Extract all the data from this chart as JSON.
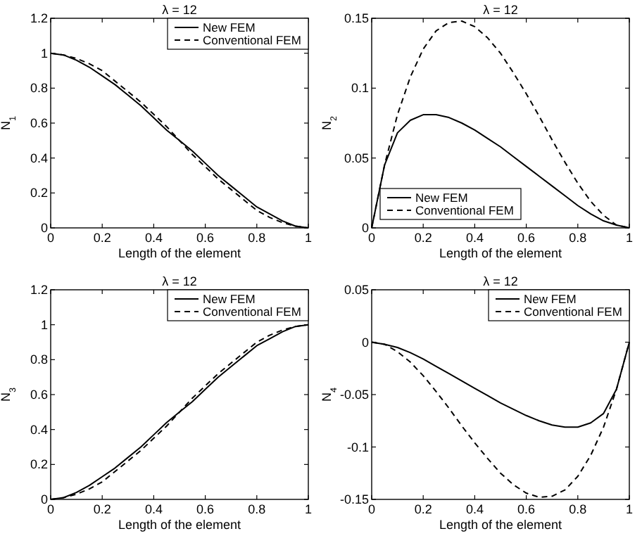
{
  "chart_data": [
    {
      "type": "line",
      "title": "λ = 12",
      "xlabel": "Length of the element",
      "ylabel": "N$_{1}$",
      "x": [
        0,
        0.05,
        0.1,
        0.15,
        0.2,
        0.25,
        0.3,
        0.35,
        0.4,
        0.45,
        0.5,
        0.55,
        0.6,
        0.65,
        0.7,
        0.75,
        0.8,
        0.85,
        0.9,
        0.95,
        1
      ],
      "xlim": [
        0,
        1
      ],
      "xticks": [
        0,
        0.2,
        0.4,
        0.6,
        0.8,
        1
      ],
      "ylim": [
        0,
        1.2
      ],
      "yticks": [
        0,
        0.2,
        0.4,
        0.6,
        0.8,
        1,
        1.2
      ],
      "legend": "top right",
      "grid": false,
      "series": [
        {
          "name": "New FEM",
          "color": "#000000",
          "line_style": "solid",
          "values": [
            1,
            0.99,
            0.96,
            0.92,
            0.87,
            0.82,
            0.76,
            0.7,
            0.63,
            0.56,
            0.5,
            0.44,
            0.37,
            0.3,
            0.24,
            0.18,
            0.12,
            0.08,
            0.04,
            0.01,
            0
          ]
        },
        {
          "name": "Conventional FEM",
          "color": "#000000",
          "line_style": "dashed",
          "values": [
            1,
            0.99,
            0.97,
            0.94,
            0.9,
            0.84,
            0.78,
            0.72,
            0.65,
            0.58,
            0.5,
            0.42,
            0.35,
            0.28,
            0.22,
            0.16,
            0.1,
            0.06,
            0.03,
            0.01,
            0
          ]
        }
      ]
    },
    {
      "type": "line",
      "title": "λ = 12",
      "xlabel": "Length of the element",
      "ylabel": "N$_{2}$",
      "x": [
        0,
        0.05,
        0.1,
        0.15,
        0.2,
        0.25,
        0.3,
        0.35,
        0.4,
        0.45,
        0.5,
        0.55,
        0.6,
        0.65,
        0.7,
        0.75,
        0.8,
        0.85,
        0.9,
        0.95,
        1
      ],
      "xlim": [
        0,
        1
      ],
      "xticks": [
        0,
        0.2,
        0.4,
        0.6,
        0.8,
        1
      ],
      "ylim": [
        0,
        0.15
      ],
      "yticks": [
        0,
        0.05,
        0.1,
        0.15
      ],
      "legend": "bottom left",
      "grid": false,
      "series": [
        {
          "name": "New FEM",
          "color": "#000000",
          "line_style": "solid",
          "values": [
            0,
            0.045,
            0.068,
            0.077,
            0.081,
            0.081,
            0.079,
            0.075,
            0.07,
            0.064,
            0.058,
            0.051,
            0.044,
            0.037,
            0.03,
            0.023,
            0.016,
            0.01,
            0.005,
            0.002,
            0
          ]
        },
        {
          "name": "Conventional FEM",
          "color": "#000000",
          "line_style": "dashed",
          "values": [
            0,
            0.045,
            0.081,
            0.108,
            0.128,
            0.141,
            0.147,
            0.148,
            0.144,
            0.136,
            0.125,
            0.111,
            0.096,
            0.08,
            0.063,
            0.047,
            0.032,
            0.019,
            0.009,
            0.002,
            0
          ]
        }
      ]
    },
    {
      "type": "line",
      "title": "λ = 12",
      "xlabel": "Length of the element",
      "ylabel": "N$_{3}$",
      "x": [
        0,
        0.05,
        0.1,
        0.15,
        0.2,
        0.25,
        0.3,
        0.35,
        0.4,
        0.45,
        0.5,
        0.55,
        0.6,
        0.65,
        0.7,
        0.75,
        0.8,
        0.85,
        0.9,
        0.95,
        1
      ],
      "xlim": [
        0,
        1
      ],
      "xticks": [
        0,
        0.2,
        0.4,
        0.6,
        0.8,
        1
      ],
      "ylim": [
        0,
        1.2
      ],
      "yticks": [
        0,
        0.2,
        0.4,
        0.6,
        0.8,
        1,
        1.2
      ],
      "legend": "top right",
      "grid": false,
      "series": [
        {
          "name": "New FEM",
          "color": "#000000",
          "line_style": "solid",
          "values": [
            0,
            0.01,
            0.04,
            0.08,
            0.13,
            0.18,
            0.24,
            0.3,
            0.37,
            0.44,
            0.5,
            0.56,
            0.63,
            0.7,
            0.76,
            0.82,
            0.88,
            0.92,
            0.96,
            0.99,
            1
          ]
        },
        {
          "name": "Conventional FEM",
          "color": "#000000",
          "line_style": "dashed",
          "values": [
            0,
            0.01,
            0.03,
            0.06,
            0.1,
            0.16,
            0.22,
            0.28,
            0.35,
            0.42,
            0.5,
            0.58,
            0.65,
            0.72,
            0.78,
            0.84,
            0.9,
            0.94,
            0.97,
            0.99,
            1
          ]
        }
      ]
    },
    {
      "type": "line",
      "title": "λ = 12",
      "xlabel": "Length of the element",
      "ylabel": "N$_{4}$",
      "x": [
        0,
        0.05,
        0.1,
        0.15,
        0.2,
        0.25,
        0.3,
        0.35,
        0.4,
        0.45,
        0.5,
        0.55,
        0.6,
        0.65,
        0.7,
        0.75,
        0.8,
        0.85,
        0.9,
        0.95,
        1
      ],
      "xlim": [
        0,
        1
      ],
      "xticks": [
        0,
        0.2,
        0.4,
        0.6,
        0.8,
        1
      ],
      "ylim": [
        -0.15,
        0.05
      ],
      "yticks": [
        -0.15,
        -0.1,
        -0.05,
        0,
        0.05
      ],
      "legend": "top right",
      "grid": false,
      "series": [
        {
          "name": "New FEM",
          "color": "#000000",
          "line_style": "solid",
          "values": [
            0,
            -0.002,
            -0.005,
            -0.01,
            -0.016,
            -0.023,
            -0.03,
            -0.037,
            -0.044,
            -0.051,
            -0.058,
            -0.064,
            -0.07,
            -0.075,
            -0.079,
            -0.081,
            -0.081,
            -0.077,
            -0.068,
            -0.045,
            0
          ]
        },
        {
          "name": "Conventional FEM",
          "color": "#000000",
          "line_style": "dashed",
          "values": [
            0,
            -0.002,
            -0.009,
            -0.019,
            -0.032,
            -0.047,
            -0.063,
            -0.08,
            -0.096,
            -0.111,
            -0.125,
            -0.136,
            -0.144,
            -0.148,
            -0.147,
            -0.141,
            -0.128,
            -0.108,
            -0.081,
            -0.045,
            0
          ]
        }
      ]
    }
  ]
}
